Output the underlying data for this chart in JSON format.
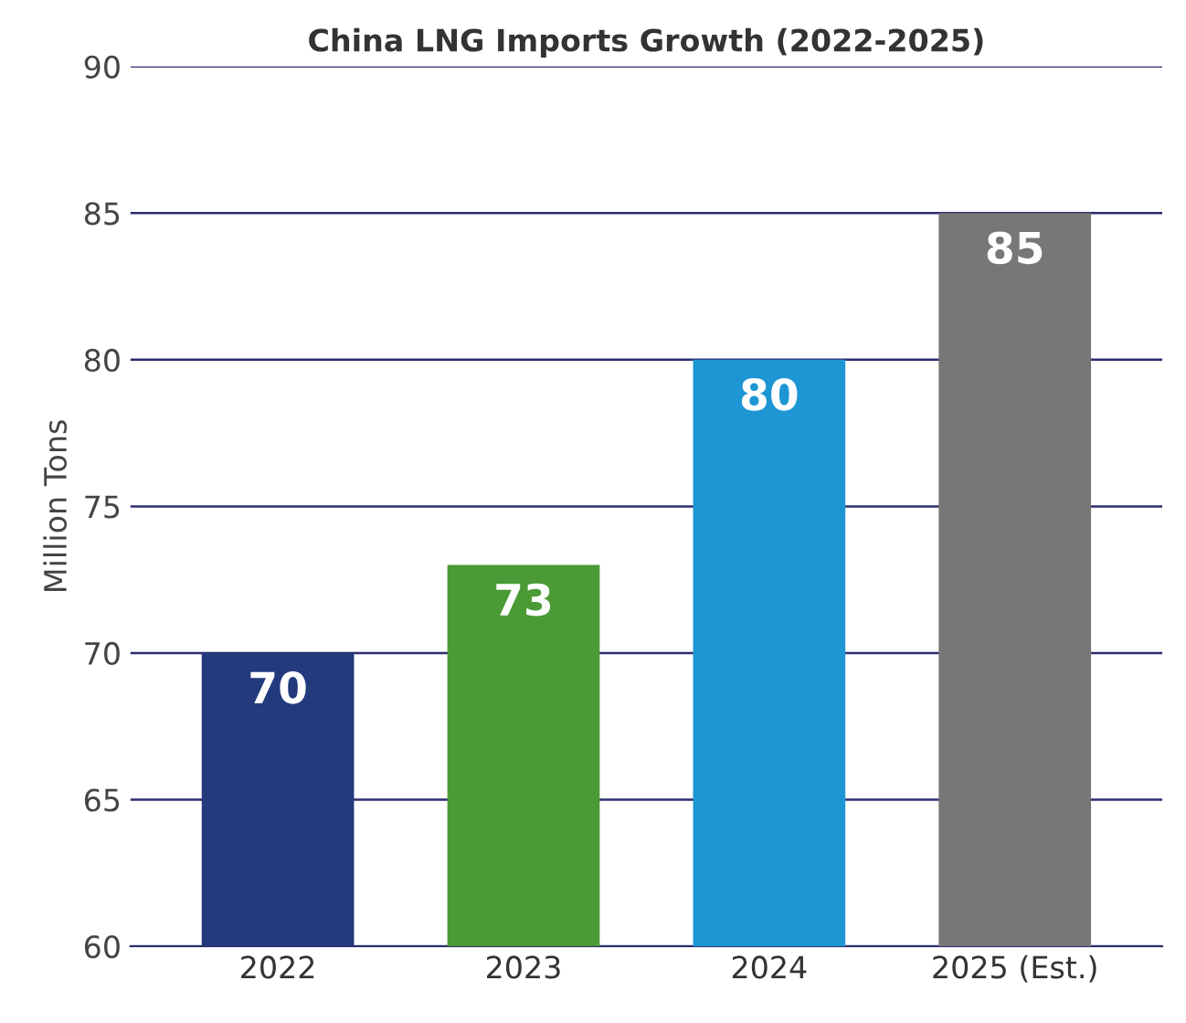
{
  "chart_data": {
    "type": "bar",
    "title": "China LNG Imports Growth (2022-2025)",
    "ylabel": "Million Tons",
    "categories": [
      "2022",
      "2023",
      "2024",
      "2025 (Est.)"
    ],
    "values": [
      70,
      73,
      80,
      85
    ],
    "colors": [
      "#233a7c",
      "#4a9a35",
      "#1e96d4",
      "#777777"
    ],
    "ylim": [
      60,
      90
    ],
    "yticks": [
      60,
      65,
      70,
      75,
      80,
      85,
      90
    ],
    "grid": "y",
    "data_labels": true
  }
}
